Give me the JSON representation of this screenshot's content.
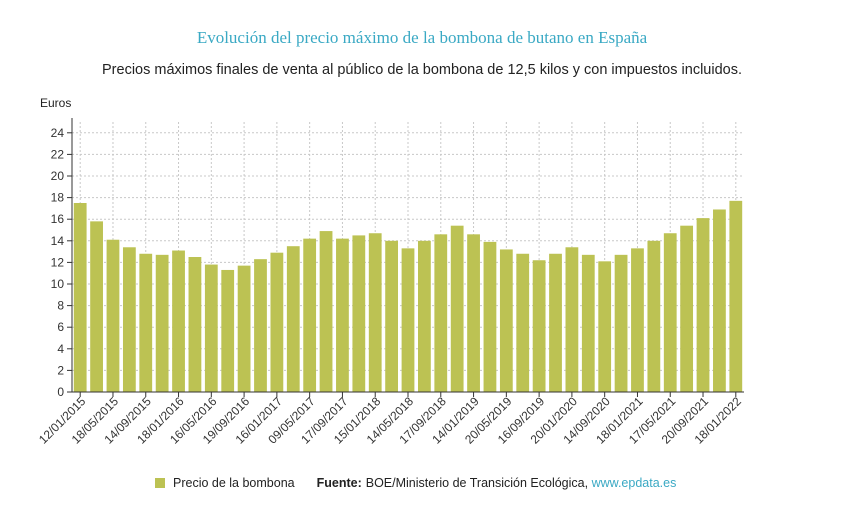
{
  "header": {
    "title": "Evolución del precio máximo de la bombona de butano en España",
    "subtitle": "Precios máximos finales de venta al público de la bombona de 12,5 kilos y con impuestos incluidos.",
    "y_unit": "Euros"
  },
  "legend": {
    "series_label": "Precio de la bombona",
    "source_label": "Fuente:",
    "source_text": "BOE/Ministerio de Transición Ecológica,",
    "source_link": "www.epdata.es"
  },
  "colors": {
    "bar": "#bcc253",
    "title": "#3aa9c4",
    "grid": "#c8c8c8",
    "axis": "#333333"
  },
  "chart_data": {
    "type": "bar",
    "title": "Evolución del precio máximo de la bombona de butano en España",
    "subtitle": "Precios máximos finales de venta al público de la bombona de 12,5 kilos y con impuestos incluidos.",
    "xlabel": "",
    "ylabel": "Euros",
    "ylim": [
      0,
      25
    ],
    "yticks": [
      0,
      2,
      4,
      6,
      8,
      10,
      12,
      14,
      16,
      18,
      20,
      22,
      24
    ],
    "grid": true,
    "legend_position": "bottom",
    "x_tick_labels": [
      "12/01/2015",
      "18/05/2015",
      "14/09/2015",
      "18/01/2016",
      "16/05/2016",
      "19/09/2016",
      "16/01/2017",
      "09/05/2017",
      "17/09/2017",
      "15/01/2018",
      "14/05/2018",
      "17/09/2018",
      "14/01/2019",
      "20/05/2019",
      "16/09/2019",
      "20/01/2020",
      "14/09/2020",
      "18/01/2021",
      "17/05/2021",
      "20/09/2021",
      "18/01/2022"
    ],
    "series": [
      {
        "name": "Precio de la bombona",
        "values": [
          17.5,
          15.8,
          14.1,
          13.4,
          12.8,
          12.7,
          13.1,
          12.5,
          11.8,
          11.3,
          11.7,
          12.3,
          12.9,
          13.5,
          14.2,
          14.9,
          14.2,
          14.5,
          14.7,
          14.0,
          13.3,
          14.0,
          14.6,
          15.4,
          14.6,
          13.9,
          13.2,
          12.8,
          12.2,
          12.8,
          13.4,
          12.7,
          12.1,
          12.7,
          13.3,
          14.0,
          14.7,
          15.4,
          16.1,
          16.9,
          17.7
        ]
      }
    ]
  }
}
